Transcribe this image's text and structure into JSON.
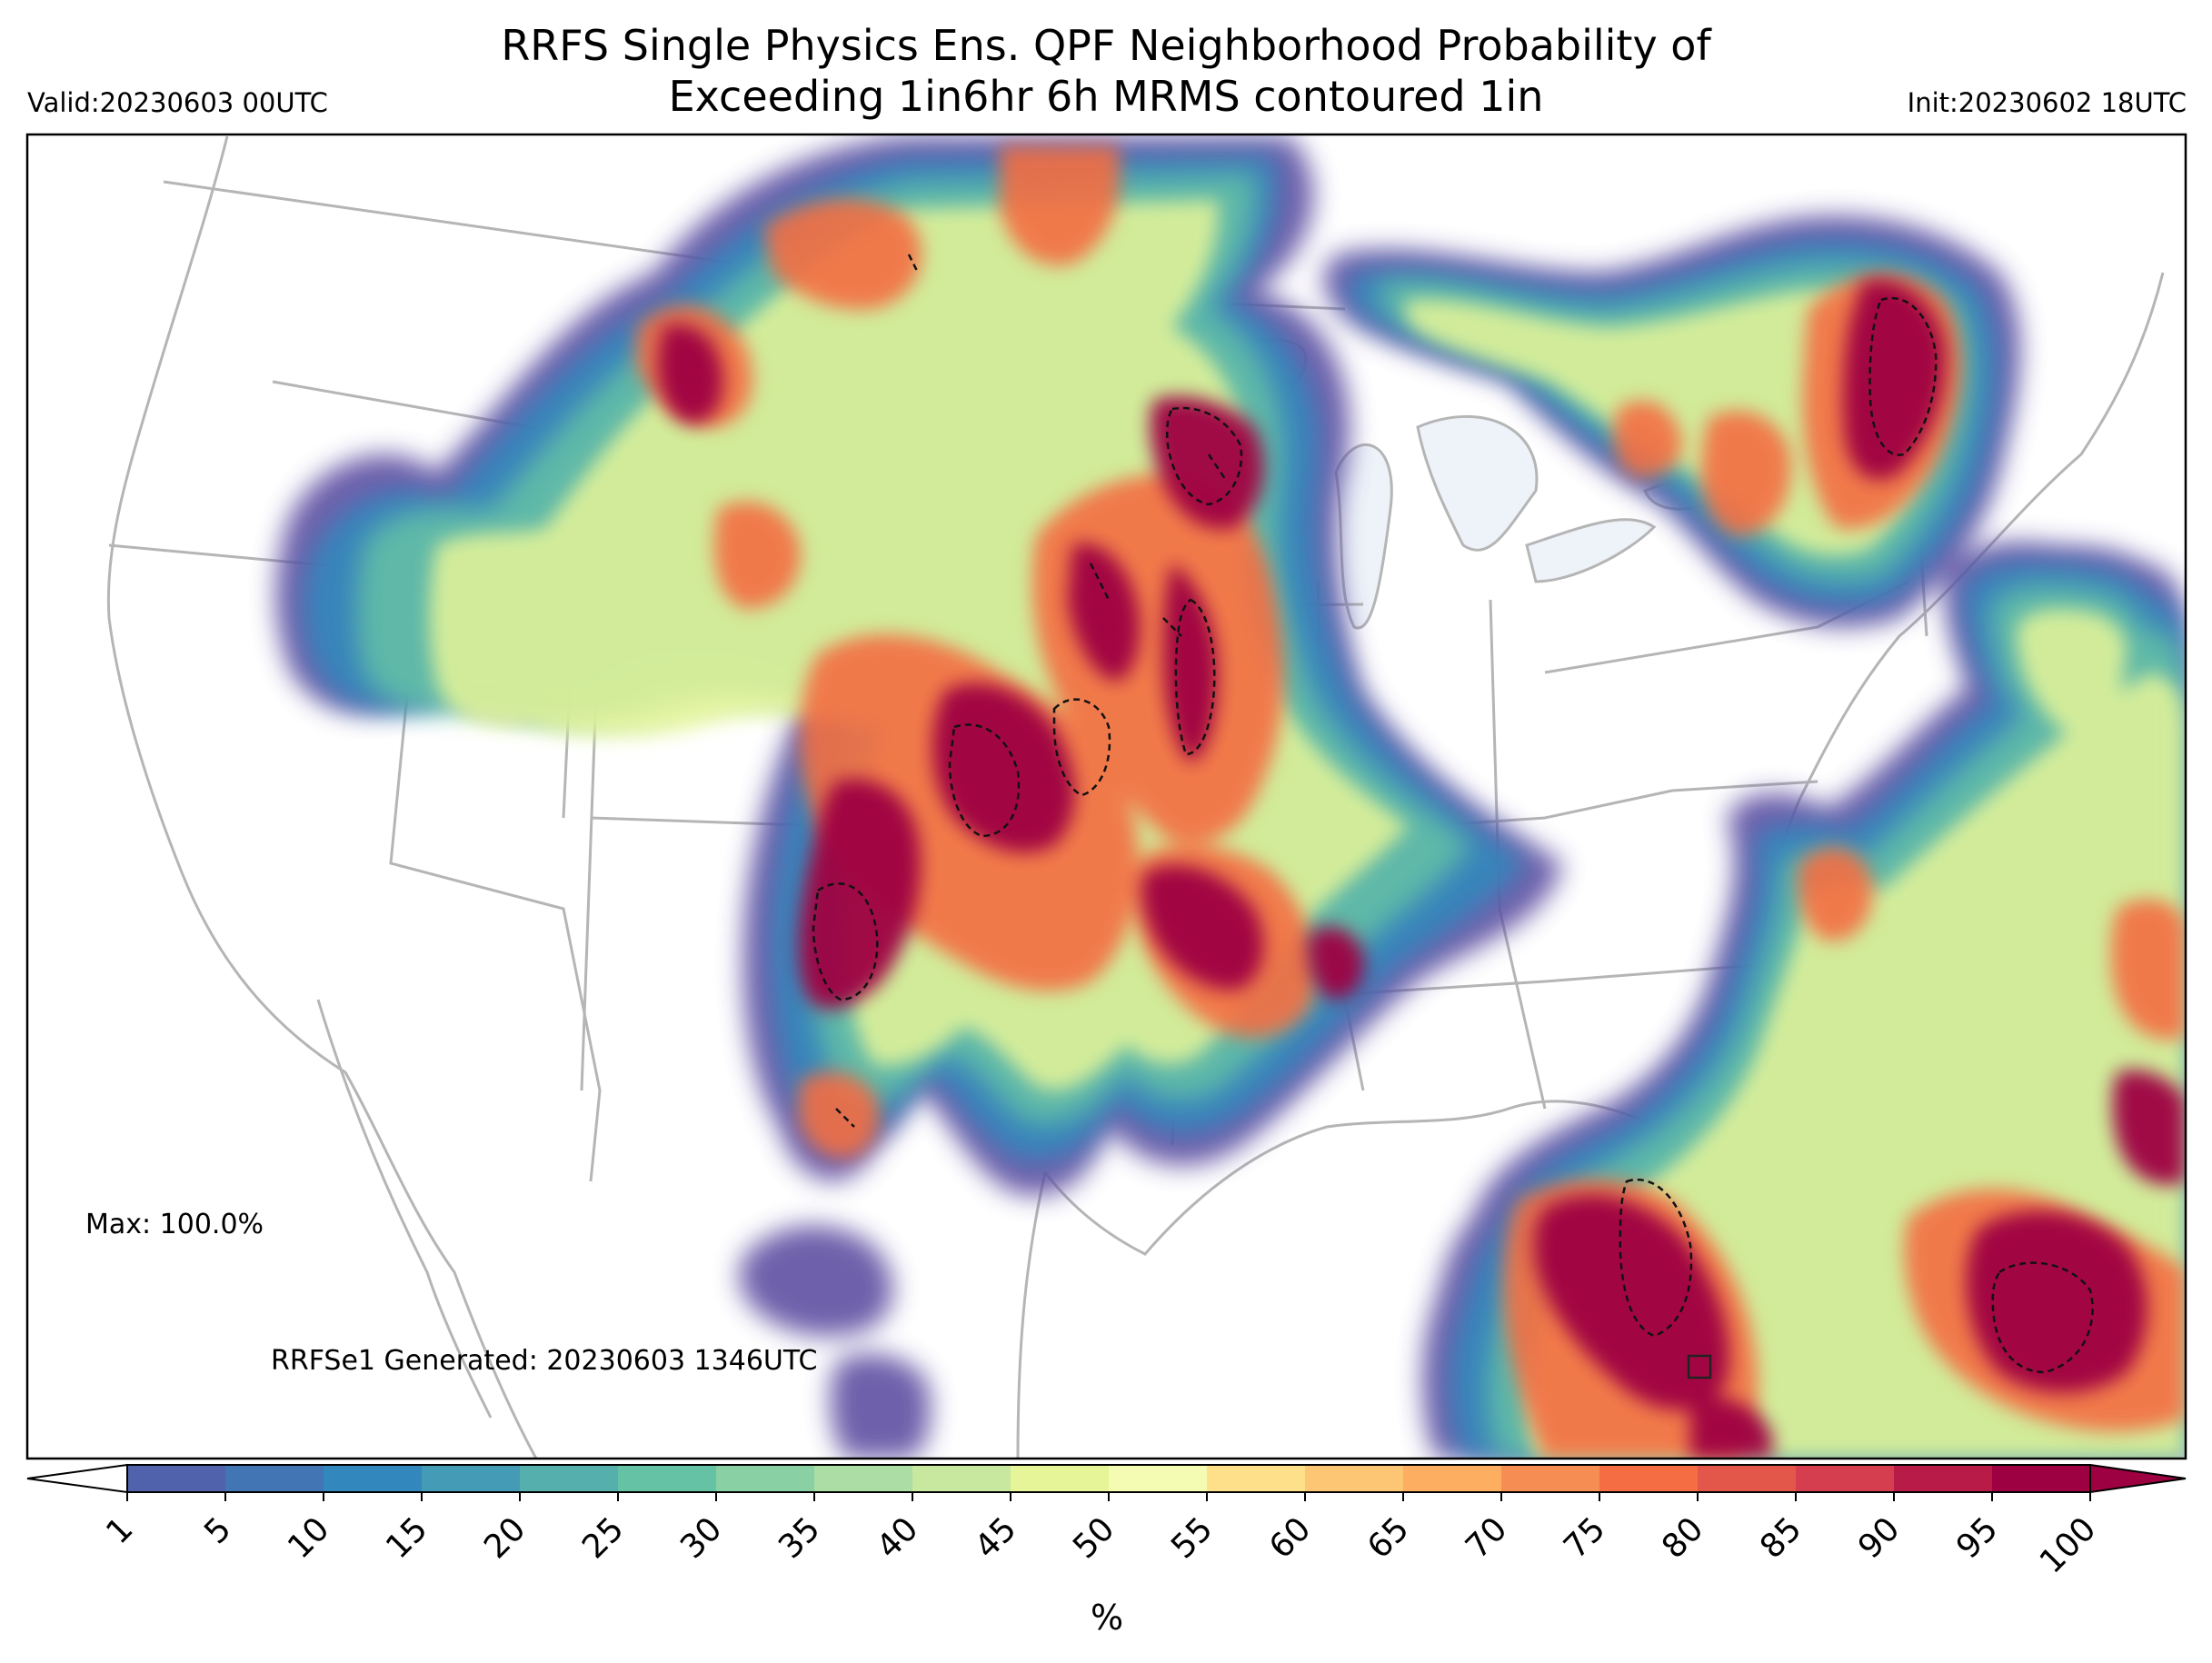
{
  "title_line1": "RRFS Single Physics Ens. QPF Neighborhood Probability of",
  "title_line2": "Exceeding 1in6hr 6h MRMS contoured 1in",
  "valid_label": "Valid:20230603 00UTC",
  "init_label": "Init:20230602 18UTC",
  "max_label": "Max: 100.0%",
  "generated_label": "RRFSe1 Generated: 20230603 1346UTC",
  "colorbar": {
    "unit": "%",
    "ticks": [
      "1",
      "5",
      "10",
      "15",
      "20",
      "25",
      "30",
      "35",
      "40",
      "45",
      "50",
      "55",
      "60",
      "65",
      "70",
      "75",
      "80",
      "85",
      "90",
      "95",
      "100"
    ],
    "colors": [
      "#5e4fa2",
      "#4f62ab",
      "#4175b4",
      "#3288bd",
      "#439bb5",
      "#55b0ad",
      "#66c2a5",
      "#89d0a4",
      "#abdda4",
      "#c8e89f",
      "#e6f598",
      "#f4fbb3",
      "#fee08b",
      "#fdc675",
      "#fdae61",
      "#f68d53",
      "#f46d43",
      "#e25749",
      "#d53e4f",
      "#b91b49",
      "#9e0142"
    ]
  },
  "map_layers": {
    "background": "#ffffff",
    "great_lakes_fill": "#eef3f9",
    "boundary_color": "#b5b5b5",
    "contour_color": "#111111"
  }
}
